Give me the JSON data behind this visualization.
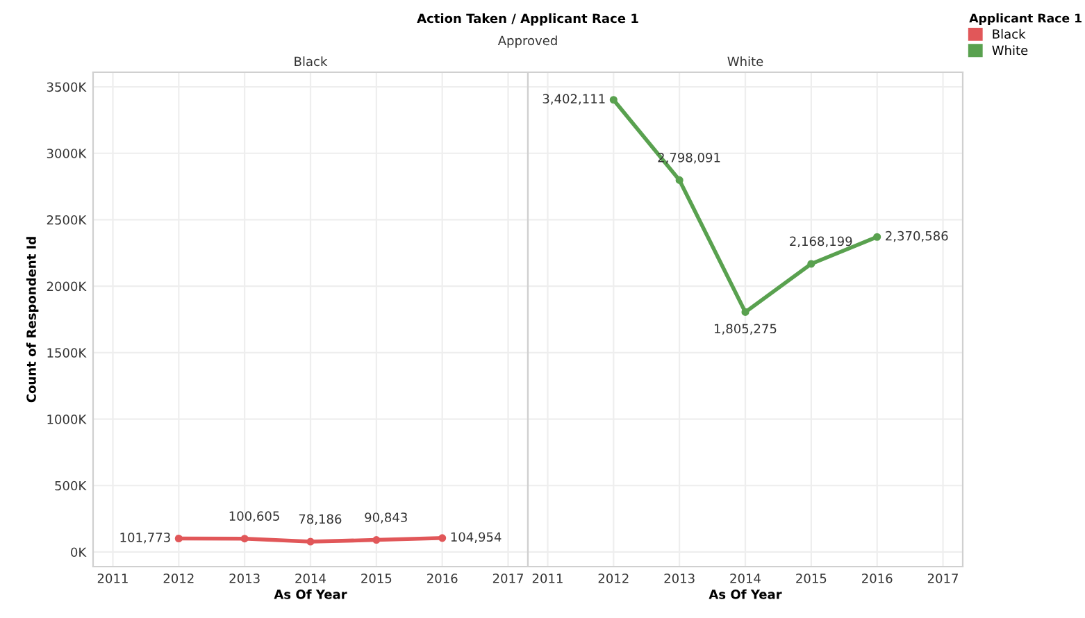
{
  "chart_data": [
    {
      "type": "line",
      "title": "Action Taken / Applicant Race 1",
      "subtitle": "Approved",
      "annotations": [
        "Black"
      ],
      "xlabel": "As Of Year",
      "ylabel": "Count of Respondent Id",
      "legend_title": "Applicant Race 1",
      "legend": "right",
      "grid": true,
      "marker": "circle",
      "x": [
        2012,
        2013,
        2014,
        2015,
        2016
      ],
      "series": [
        {
          "name": "Black",
          "color": "#e15759",
          "values": [
            101773,
            100605,
            78186,
            90843,
            104954
          ],
          "value_labels": [
            "101,773",
            "100,605",
            "78,186",
            "90,843",
            "104,954"
          ]
        }
      ],
      "xlim": [
        2010.7,
        2017.3
      ],
      "xticks": [
        2011,
        2012,
        2013,
        2014,
        2015,
        2016,
        2017
      ],
      "ylim": [
        -110000,
        3610000
      ],
      "yticks": [
        {
          "value": 0,
          "label": "0K"
        },
        {
          "value": 500000,
          "label": "500K"
        },
        {
          "value": 1000000,
          "label": "1000K"
        },
        {
          "value": 1500000,
          "label": "1500K"
        },
        {
          "value": 2000000,
          "label": "2000K"
        },
        {
          "value": 2500000,
          "label": "2500K"
        },
        {
          "value": 3000000,
          "label": "3000K"
        },
        {
          "value": 3500000,
          "label": "3500K"
        }
      ]
    },
    {
      "type": "line",
      "annotations": [
        "White"
      ],
      "xlabel": "As Of Year",
      "grid": true,
      "marker": "circle",
      "tick_labels": "x",
      "x": [
        2012,
        2013,
        2014,
        2015,
        2016
      ],
      "series": [
        {
          "name": "White",
          "color": "#59a14f",
          "values": [
            3402111,
            2798091,
            1805275,
            2168199,
            2370586
          ],
          "value_labels": [
            "3,402,111",
            "2,798,091",
            "1,805,275",
            "2,168,199",
            "2,370,586"
          ]
        }
      ],
      "xlim": [
        2010.7,
        2017.3
      ],
      "xticks": [
        2011,
        2012,
        2013,
        2014,
        2015,
        2016,
        2017
      ],
      "ylim": [
        -110000,
        3610000
      ],
      "yticks": [
        {
          "value": 0,
          "label": null
        },
        {
          "value": 500000,
          "label": null
        },
        {
          "value": 1000000,
          "label": null
        },
        {
          "value": 1500000,
          "label": null
        },
        {
          "value": 2000000,
          "label": null
        },
        {
          "value": 2500000,
          "label": null
        },
        {
          "value": 3000000,
          "label": null
        },
        {
          "value": 3500000,
          "label": null
        }
      ]
    }
  ]
}
